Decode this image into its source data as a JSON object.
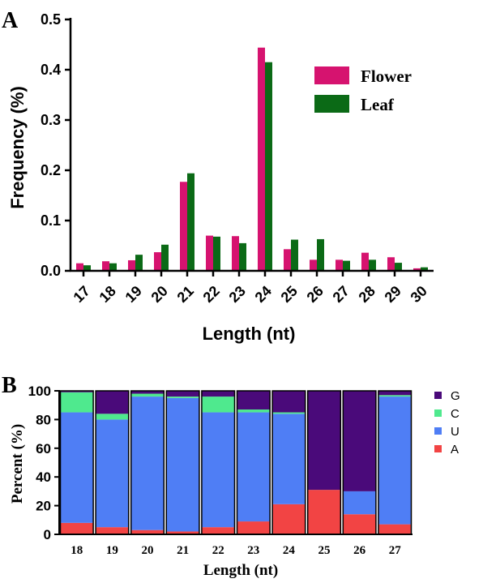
{
  "panel_a": {
    "label": "A",
    "chart_data": {
      "type": "bar",
      "categories": [
        "17",
        "18",
        "19",
        "20",
        "21",
        "22",
        "23",
        "24",
        "25",
        "26",
        "27",
        "28",
        "29",
        "30"
      ],
      "series": [
        {
          "name": "Flower",
          "color": "#d6136f",
          "values": [
            0.015,
            0.019,
            0.021,
            0.037,
            0.177,
            0.07,
            0.069,
            0.444,
            0.043,
            0.022,
            0.022,
            0.036,
            0.027,
            0.005
          ]
        },
        {
          "name": "Leaf",
          "color": "#0b6a16",
          "values": [
            0.011,
            0.015,
            0.032,
            0.052,
            0.194,
            0.068,
            0.055,
            0.415,
            0.062,
            0.063,
            0.02,
            0.022,
            0.016,
            0.007
          ]
        }
      ],
      "xlabel": "Length (nt)",
      "ylabel": "Frequency (%)",
      "ylim": [
        0,
        0.5
      ],
      "yticks": [
        "0.0",
        "0.1",
        "0.2",
        "0.3",
        "0.4",
        "0.5"
      ],
      "legend_position": "top-right",
      "grid": false
    }
  },
  "panel_b": {
    "label": "B",
    "chart_data": {
      "type": "bar",
      "stacked": true,
      "categories": [
        "18",
        "19",
        "20",
        "21",
        "22",
        "23",
        "24",
        "25",
        "26",
        "27"
      ],
      "series": [
        {
          "name": "A",
          "color": "#f24444",
          "values": [
            8,
            5,
            3,
            2,
            5,
            9,
            21,
            31,
            14,
            7
          ]
        },
        {
          "name": "U",
          "color": "#4f7ef5",
          "values": [
            77,
            75,
            93,
            93,
            80,
            76,
            63,
            0,
            16,
            89
          ]
        },
        {
          "name": "C",
          "color": "#4fe98e",
          "values": [
            14,
            4,
            2,
            1,
            11,
            2,
            1,
            0,
            0,
            1
          ]
        },
        {
          "name": "G",
          "color": "#4a0a7a",
          "values": [
            1,
            16,
            2,
            4,
            4,
            13,
            15,
            69,
            70,
            3
          ]
        }
      ],
      "legend_order": [
        "G",
        "C",
        "U",
        "A"
      ],
      "xlabel": "Length (nt)",
      "ylabel": "Percent (%)",
      "ylim": [
        0,
        100
      ],
      "yticks": [
        "0",
        "20",
        "40",
        "60",
        "80",
        "100"
      ],
      "legend_position": "right",
      "grid": false
    }
  }
}
